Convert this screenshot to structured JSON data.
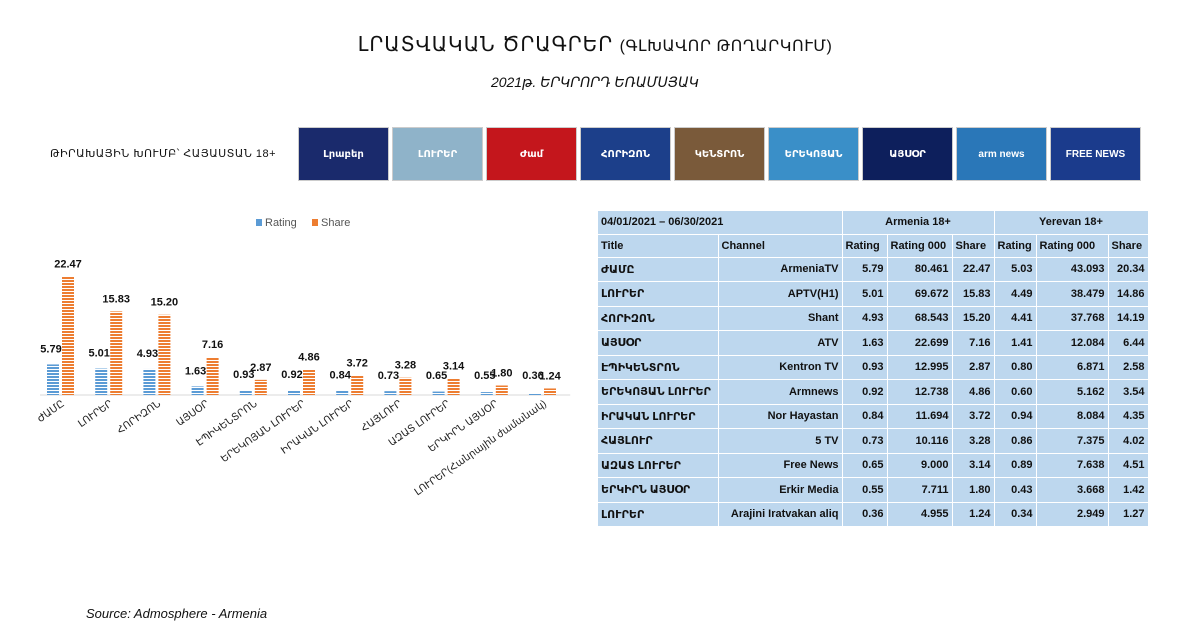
{
  "header": {
    "title_main": "ԼՐԱՏՎԱԿԱՆ ԾՐԱԳՐԵՐ",
    "title_sub": "(ԳԼԽԱՎՈՐ ԹՈՂԱՐԿՈՒՄ)",
    "period": "2021թ. ԵՐԿՐՈՐԴ ԵՌԱՄՍՅԱԿ",
    "target_group": "ԹԻՐԱԽԱՅԻՆ ԽՈՒՄԲ՝ ՀԱՅԱՍՏԱՆ 18+"
  },
  "logos": [
    {
      "label": "Լրաբեր",
      "color": "#1a2a6c"
    },
    {
      "label": "ԼՈՒՐԵՐ",
      "color": "#8fb3c9"
    },
    {
      "label": "Ժամ",
      "color": "#c4161c"
    },
    {
      "label": "ՀՈՐԻԶՈՆ",
      "color": "#1c3f8a"
    },
    {
      "label": "ԿԵՆՏՐՈՆ",
      "color": "#7a5a3a"
    },
    {
      "label": "ԵՐԵԿՈՅԱՆ",
      "color": "#3a8fc8"
    },
    {
      "label": "ԱՅՍՕՐ",
      "color": "#0d1f5c"
    },
    {
      "label": "arm news",
      "color": "#2a77b8"
    },
    {
      "label": "FREE NEWS",
      "color": "#1b3b8c"
    }
  ],
  "chart_data": {
    "type": "bar",
    "legend": [
      "Rating",
      "Share"
    ],
    "legend_position": "top",
    "categories": [
      "ԺԱՄԸ",
      "ԼՈՒՐԵՐ",
      "ՀՈՐԻԶՈՆ",
      "ԱՅՍՕՐ",
      "ԷՊԻԿԵՆՏՐՈՆ",
      "ԵՐԵԿՈՅԱՆ ԼՈՒՐԵՐ",
      "ԻՐԱԿԱՆ ԼՈՒՐԵՐ",
      "ՀԱՅԼՈՒՐ",
      "ԱԶԱՏ ԼՈՒՐԵՐ",
      "ԵՐԿԻՐՆ ԱՅՍՕՐ",
      "ԼՈՒՐԵՐ(Հանրային ժամանակ)"
    ],
    "series": [
      {
        "name": "Rating",
        "values": [
          5.79,
          5.01,
          4.93,
          1.63,
          0.93,
          0.92,
          0.84,
          0.73,
          0.65,
          0.55,
          0.36
        ],
        "color": "#5b9bd5"
      },
      {
        "name": "Share",
        "values": [
          22.47,
          15.83,
          15.2,
          7.16,
          2.87,
          4.86,
          3.72,
          3.28,
          3.14,
          1.8,
          1.24
        ],
        "color": "#ed7d31"
      }
    ],
    "ylim": [
      0,
      25
    ],
    "grid": false
  },
  "table": {
    "period": "04/01/2021 – 06/30/2021",
    "groups": [
      "Armenia 18+",
      "Yerevan 18+"
    ],
    "columns": [
      "Title",
      "Channel",
      "Rating",
      "Rating 000",
      "Share",
      "Rating",
      "Rating 000",
      "Share"
    ],
    "rows": [
      [
        "ԺԱՄԸ",
        "ArmeniaTV",
        "5.79",
        "80.461",
        "22.47",
        "5.03",
        "43.093",
        "20.34"
      ],
      [
        "ԼՈՒՐԵՐ",
        "APTV(H1)",
        "5.01",
        "69.672",
        "15.83",
        "4.49",
        "38.479",
        "14.86"
      ],
      [
        "ՀՈՐԻԶՈՆ",
        "Shant",
        "4.93",
        "68.543",
        "15.20",
        "4.41",
        "37.768",
        "14.19"
      ],
      [
        "ԱՅՍՕՐ",
        "ATV",
        "1.63",
        "22.699",
        "7.16",
        "1.41",
        "12.084",
        "6.44"
      ],
      [
        "ԷՊԻԿԵՆՏՐՈՆ",
        "Kentron TV",
        "0.93",
        "12.995",
        "2.87",
        "0.80",
        "6.871",
        "2.58"
      ],
      [
        "ԵՐԵԿՈՅԱՆ ԼՈՒՐԵՐ",
        "Armnews",
        "0.92",
        "12.738",
        "4.86",
        "0.60",
        "5.162",
        "3.54"
      ],
      [
        "ԻՐԱԿԱՆ ԼՈՒՐԵՐ",
        "Nor Hayastan",
        "0.84",
        "11.694",
        "3.72",
        "0.94",
        "8.084",
        "4.35"
      ],
      [
        "ՀԱՅԼՈՒՐ",
        "5 TV",
        "0.73",
        "10.116",
        "3.28",
        "0.86",
        "7.375",
        "4.02"
      ],
      [
        "ԱԶԱՏ ԼՈՒՐԵՐ",
        "Free News",
        "0.65",
        "9.000",
        "3.14",
        "0.89",
        "7.638",
        "4.51"
      ],
      [
        "ԵՐԿԻՐՆ ԱՅՍՕՐ",
        "Erkir Media",
        "0.55",
        "7.711",
        "1.80",
        "0.43",
        "3.668",
        "1.42"
      ],
      [
        "ԼՈՒՐԵՐ",
        "Arajini Iratvakan aliq",
        "0.36",
        "4.955",
        "1.24",
        "0.34",
        "2.949",
        "1.27"
      ]
    ]
  },
  "footer": {
    "source": "Source: Admosphere - Armenia"
  }
}
